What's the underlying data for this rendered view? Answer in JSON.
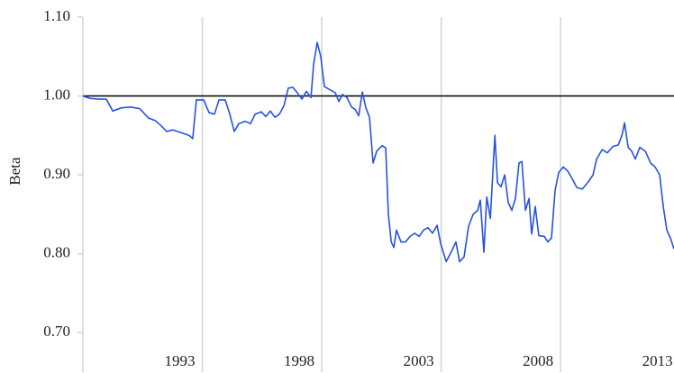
{
  "chart_data": {
    "type": "line",
    "y_label": "Beta",
    "x": [
      1988.0,
      1988.3,
      1988.68,
      1988.98,
      1989.25,
      1989.62,
      1990.0,
      1990.38,
      1990.75,
      1991.02,
      1991.25,
      1991.51,
      1991.77,
      1992.08,
      1992.45,
      1992.6,
      1992.75,
      1993.06,
      1993.28,
      1993.51,
      1993.7,
      1993.96,
      1994.15,
      1994.34,
      1994.53,
      1994.79,
      1995.02,
      1995.21,
      1995.47,
      1995.66,
      1995.85,
      1996.04,
      1996.23,
      1996.42,
      1996.6,
      1996.79,
      1996.98,
      1997.17,
      1997.36,
      1997.55,
      1997.66,
      1997.81,
      1997.96,
      1998.11,
      1998.34,
      1998.57,
      1998.72,
      1998.87,
      1999.06,
      1999.25,
      1999.4,
      1999.55,
      1999.7,
      1999.85,
      2000.0,
      2000.15,
      2000.3,
      2000.53,
      2000.68,
      2000.79,
      2000.91,
      2001.02,
      2001.13,
      2001.32,
      2001.51,
      2001.7,
      2001.89,
      2002.08,
      2002.26,
      2002.45,
      2002.64,
      2002.83,
      2002.98,
      2003.21,
      2003.4,
      2003.62,
      2003.77,
      2003.96,
      2004.15,
      2004.34,
      2004.53,
      2004.64,
      2004.79,
      2004.91,
      2005.06,
      2005.25,
      2005.36,
      2005.51,
      2005.66,
      2005.81,
      2005.96,
      2006.11,
      2006.26,
      2006.38,
      2006.53,
      2006.68,
      2006.79,
      2006.94,
      2007.09,
      2007.32,
      2007.47,
      2007.62,
      2007.77,
      2007.92,
      2008.11,
      2008.3,
      2008.49,
      2008.68,
      2008.91,
      2009.13,
      2009.36,
      2009.51,
      2009.74,
      2009.96,
      2010.19,
      2010.42,
      2010.57,
      2010.68,
      2010.83,
      2010.98,
      2011.13,
      2011.32,
      2011.55,
      2011.77,
      2011.96,
      2012.15,
      2012.3,
      2012.45,
      2012.6,
      2012.75
    ],
    "values": [
      1.0,
      0.997,
      0.996,
      0.996,
      0.981,
      0.985,
      0.986,
      0.984,
      0.972,
      0.969,
      0.963,
      0.955,
      0.957,
      0.954,
      0.95,
      0.946,
      0.995,
      0.995,
      0.979,
      0.977,
      0.995,
      0.995,
      0.977,
      0.955,
      0.965,
      0.968,
      0.965,
      0.977,
      0.98,
      0.974,
      0.981,
      0.973,
      0.977,
      0.988,
      1.01,
      1.011,
      1.004,
      0.996,
      1.006,
      0.998,
      1.04,
      1.068,
      1.05,
      1.012,
      1.008,
      1.004,
      0.993,
      1.002,
      0.998,
      0.986,
      0.983,
      0.975,
      1.005,
      0.985,
      0.973,
      0.915,
      0.93,
      0.937,
      0.934,
      0.85,
      0.815,
      0.808,
      0.83,
      0.815,
      0.815,
      0.822,
      0.826,
      0.822,
      0.83,
      0.833,
      0.826,
      0.836,
      0.813,
      0.79,
      0.801,
      0.815,
      0.79,
      0.796,
      0.835,
      0.85,
      0.855,
      0.868,
      0.802,
      0.872,
      0.845,
      0.95,
      0.89,
      0.885,
      0.9,
      0.865,
      0.855,
      0.87,
      0.915,
      0.917,
      0.855,
      0.87,
      0.825,
      0.86,
      0.823,
      0.822,
      0.815,
      0.82,
      0.88,
      0.903,
      0.91,
      0.905,
      0.895,
      0.884,
      0.882,
      0.89,
      0.9,
      0.92,
      0.932,
      0.928,
      0.936,
      0.938,
      0.95,
      0.966,
      0.935,
      0.93,
      0.92,
      0.935,
      0.93,
      0.915,
      0.91,
      0.9,
      0.86,
      0.83,
      0.82,
      0.806
    ],
    "color": "#2652e3",
    "reference_line": 1.0,
    "xlim": [
      1988,
      2012.75
    ],
    "xticks": [
      1993,
      1998,
      2003,
      2008,
      2013
    ],
    "ylim": [
      0.65,
      1.1
    ],
    "yticks": [
      {
        "value": 0.7,
        "label": "0.70"
      },
      {
        "value": 0.8,
        "label": "0.80"
      },
      {
        "value": 0.9,
        "label": "0.90"
      },
      {
        "value": 1.0,
        "label": "1.00"
      },
      {
        "value": 1.1,
        "label": "1.10"
      }
    ],
    "grid": true
  }
}
